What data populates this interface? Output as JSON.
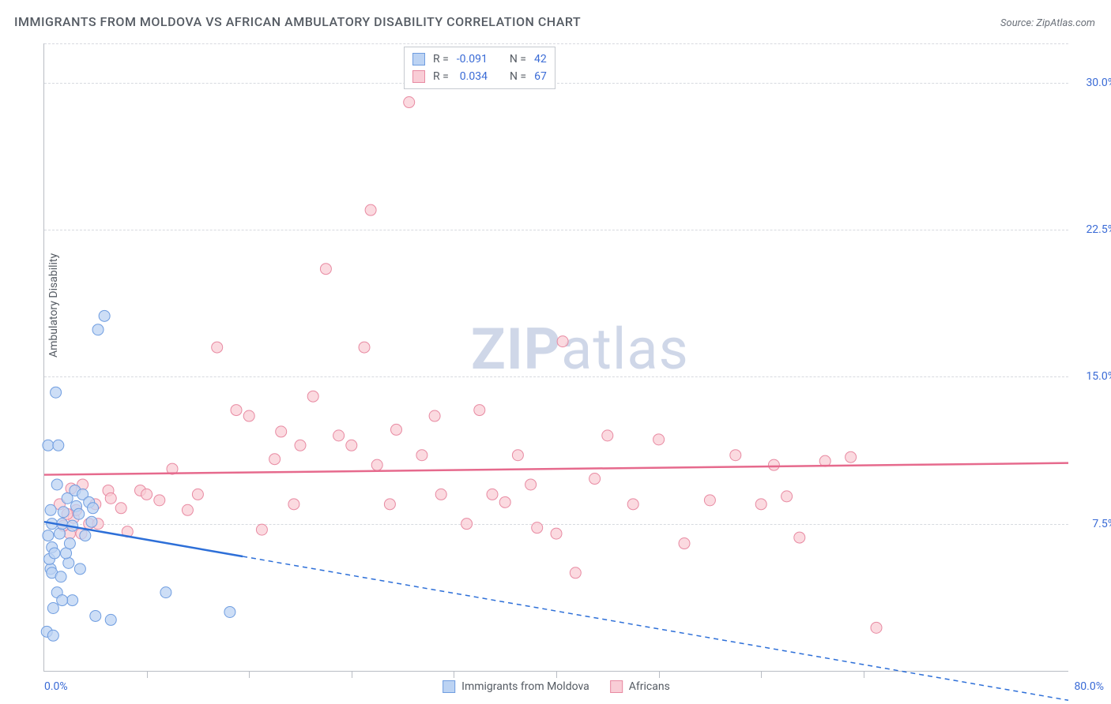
{
  "title": "IMMIGRANTS FROM MOLDOVA VS AFRICAN AMBULATORY DISABILITY CORRELATION CHART",
  "source": "Source: ZipAtlas.com",
  "y_axis_label": "Ambulatory Disability",
  "x_axis": {
    "min": 0.0,
    "max": 80.0,
    "label_min": "0.0%",
    "label_max": "80.0%",
    "tick_positions_pct": [
      10,
      20,
      30,
      40,
      50,
      60,
      70,
      80
    ]
  },
  "y_axis": {
    "min": 0.0,
    "max": 32.0,
    "ticks": [
      7.5,
      15.0,
      22.5,
      30.0
    ],
    "tick_labels": [
      "7.5%",
      "15.0%",
      "22.5%",
      "30.0%"
    ]
  },
  "series": {
    "a": {
      "name": "Immigrants from Moldova",
      "color_fill": "#bcd3f3",
      "color_stroke": "#6f9de0",
      "line_color": "#2d6fd8",
      "r_value": "-0.091",
      "n_value": "42",
      "trend": {
        "y_at_x0": 7.6,
        "y_at_x80": -1.5,
        "solid_until_x": 15.5
      },
      "points": [
        [
          0.2,
          2.0
        ],
        [
          0.7,
          1.8
        ],
        [
          0.5,
          5.2
        ],
        [
          0.6,
          5.0
        ],
        [
          0.4,
          5.7
        ],
        [
          0.6,
          6.3
        ],
        [
          0.8,
          6.0
        ],
        [
          0.3,
          6.9
        ],
        [
          0.6,
          7.5
        ],
        [
          0.5,
          8.2
        ],
        [
          1.2,
          7.0
        ],
        [
          1.4,
          7.5
        ],
        [
          1.5,
          8.1
        ],
        [
          1.8,
          8.8
        ],
        [
          1.0,
          9.5
        ],
        [
          2.2,
          7.4
        ],
        [
          2.5,
          8.4
        ],
        [
          2.7,
          8.0
        ],
        [
          1.9,
          5.5
        ],
        [
          1.3,
          4.8
        ],
        [
          1.0,
          4.0
        ],
        [
          2.2,
          3.6
        ],
        [
          2.4,
          9.2
        ],
        [
          3.0,
          9.0
        ],
        [
          3.5,
          8.6
        ],
        [
          3.7,
          7.6
        ],
        [
          3.8,
          8.3
        ],
        [
          0.3,
          11.5
        ],
        [
          1.1,
          11.5
        ],
        [
          0.9,
          14.2
        ],
        [
          4.2,
          17.4
        ],
        [
          4.7,
          18.1
        ],
        [
          4.0,
          2.8
        ],
        [
          5.2,
          2.6
        ],
        [
          9.5,
          4.0
        ],
        [
          14.5,
          3.0
        ],
        [
          1.7,
          6.0
        ],
        [
          2.0,
          6.5
        ],
        [
          0.7,
          3.2
        ],
        [
          1.4,
          3.6
        ],
        [
          2.8,
          5.2
        ],
        [
          3.2,
          6.9
        ]
      ]
    },
    "b": {
      "name": "Africans",
      "color_fill": "#f9cdd6",
      "color_stroke": "#e88aa2",
      "line_color": "#e66a8d",
      "r_value": "0.034",
      "n_value": "67",
      "trend": {
        "y_at_x0": 10.0,
        "y_at_x80": 10.6,
        "solid_until_x": 80
      },
      "points": [
        [
          2.0,
          7.0
        ],
        [
          2.3,
          7.8
        ],
        [
          3.5,
          7.5
        ],
        [
          4.0,
          8.5
        ],
        [
          5.0,
          9.2
        ],
        [
          5.2,
          8.8
        ],
        [
          6.0,
          8.3
        ],
        [
          6.5,
          7.1
        ],
        [
          7.5,
          9.2
        ],
        [
          8.0,
          9.0
        ],
        [
          9.0,
          8.7
        ],
        [
          10.0,
          10.3
        ],
        [
          11.2,
          8.2
        ],
        [
          12.0,
          9.0
        ],
        [
          13.5,
          16.5
        ],
        [
          15.0,
          13.3
        ],
        [
          16.0,
          13.0
        ],
        [
          17.0,
          7.2
        ],
        [
          18.0,
          10.8
        ],
        [
          18.5,
          12.2
        ],
        [
          19.5,
          8.5
        ],
        [
          20.0,
          11.5
        ],
        [
          21.0,
          14.0
        ],
        [
          22.0,
          20.5
        ],
        [
          23.0,
          12.0
        ],
        [
          24.0,
          11.5
        ],
        [
          25.0,
          16.5
        ],
        [
          25.5,
          23.5
        ],
        [
          26.0,
          10.5
        ],
        [
          27.0,
          8.5
        ],
        [
          27.5,
          12.3
        ],
        [
          28.5,
          29.0
        ],
        [
          29.5,
          11.0
        ],
        [
          30.5,
          13.0
        ],
        [
          31.0,
          9.0
        ],
        [
          33.0,
          7.5
        ],
        [
          34.0,
          13.3
        ],
        [
          35.0,
          9.0
        ],
        [
          36.0,
          8.6
        ],
        [
          37.0,
          11.0
        ],
        [
          38.0,
          9.5
        ],
        [
          38.5,
          7.3
        ],
        [
          40.0,
          7.0
        ],
        [
          40.5,
          16.8
        ],
        [
          41.5,
          5.0
        ],
        [
          43.0,
          9.8
        ],
        [
          44.0,
          12.0
        ],
        [
          46.0,
          8.5
        ],
        [
          48.0,
          11.8
        ],
        [
          50.0,
          6.5
        ],
        [
          52.0,
          8.7
        ],
        [
          54.0,
          11.0
        ],
        [
          56.0,
          8.5
        ],
        [
          57.0,
          10.5
        ],
        [
          58.0,
          8.9
        ],
        [
          59.0,
          6.8
        ],
        [
          61.0,
          10.7
        ],
        [
          63.0,
          10.9
        ],
        [
          65.0,
          2.2
        ],
        [
          2.5,
          8.2
        ],
        [
          3.0,
          9.5
        ],
        [
          4.2,
          7.5
        ],
        [
          1.8,
          8.0
        ],
        [
          2.1,
          9.3
        ],
        [
          1.5,
          7.4
        ],
        [
          2.9,
          7.0
        ],
        [
          1.2,
          8.5
        ]
      ]
    }
  },
  "legend_top": {
    "r_label": "R =",
    "n_label": "N ="
  },
  "watermark": {
    "bold": "ZIP",
    "rest": "atlas"
  },
  "marker_radius": 7,
  "background": "#ffffff"
}
